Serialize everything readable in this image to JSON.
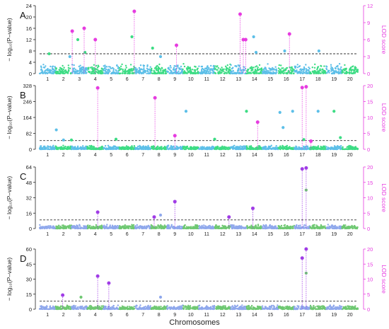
{
  "figure": {
    "xlabel": "Chromosomes",
    "chromosomes": [
      "1",
      "2",
      "3",
      "4",
      "5",
      "6",
      "7",
      "8",
      "9",
      "10",
      "11",
      "12",
      "13",
      "14",
      "15",
      "16",
      "17",
      "18",
      "19",
      "20"
    ],
    "left_axis_label": "− log₁₀(P–value)",
    "right_axis_label": "LOD score",
    "colors": {
      "chrom_odd": "#5dbfe8",
      "chrom_even": "#3ddc84",
      "c_odd": "#8fa8ec",
      "c_even": "#6fc872",
      "highlight": "#e63ce0",
      "right_axis": "#e63ce0",
      "threshold": "#333333",
      "stem": "#e63ce0"
    }
  },
  "chart_data": [
    {
      "panel": "A",
      "type": "scatter",
      "left_ticks": [
        0,
        4,
        8,
        12,
        16,
        20,
        24
      ],
      "right_ticks": [
        0,
        3,
        6,
        9,
        12
      ],
      "ylim": [
        0,
        24
      ],
      "right_ylim": [
        0,
        12
      ],
      "threshold": 7,
      "background_height": 2.5,
      "highlighted_peaks": [
        {
          "chrom": 2.55,
          "value": 15,
          "color": "#e63ce0"
        },
        {
          "chrom": 3.3,
          "value": 16,
          "color": "#e63ce0"
        },
        {
          "chrom": 4.0,
          "value": 12,
          "color": "#e63ce0"
        },
        {
          "chrom": 6.45,
          "value": 22,
          "color": "#e63ce0"
        },
        {
          "chrom": 9.1,
          "value": 10,
          "color": "#e63ce0"
        },
        {
          "chrom": 13.1,
          "value": 21,
          "color": "#e63ce0"
        },
        {
          "chrom": 13.3,
          "value": 12,
          "color": "#e63ce0"
        },
        {
          "chrom": 13.45,
          "value": 12,
          "color": "#e63ce0"
        },
        {
          "chrom": 16.2,
          "value": 14,
          "color": "#e63ce0"
        }
      ],
      "other_points": [
        {
          "chrom": 1.1,
          "value": 7,
          "color": "#3ddc84"
        },
        {
          "chrom": 2.4,
          "value": 6,
          "color": "#5dbfe8"
        },
        {
          "chrom": 2.9,
          "value": 12,
          "color": "#3ddc84"
        },
        {
          "chrom": 3.35,
          "value": 7.5,
          "color": "#3ddc84"
        },
        {
          "chrom": 6.3,
          "value": 13,
          "color": "#3ddc84"
        },
        {
          "chrom": 7.6,
          "value": 9,
          "color": "#3ddc84"
        },
        {
          "chrom": 8.1,
          "value": 6,
          "color": "#5dbfe8"
        },
        {
          "chrom": 13.95,
          "value": 13,
          "color": "#5dbfe8"
        },
        {
          "chrom": 14.1,
          "value": 7.5,
          "color": "#5dbfe8"
        },
        {
          "chrom": 15.9,
          "value": 8,
          "color": "#5dbfe8"
        },
        {
          "chrom": 18.05,
          "value": 8,
          "color": "#5dbfe8"
        }
      ]
    },
    {
      "panel": "B",
      "type": "scatter",
      "left_ticks": [
        0,
        82,
        164,
        246,
        328
      ],
      "right_ticks": [
        0,
        5,
        10,
        15,
        20
      ],
      "ylim": [
        0,
        328
      ],
      "right_ylim": [
        0,
        20
      ],
      "threshold": 45,
      "background_height": 15,
      "highlighted_peaks": [
        {
          "chrom": 4.15,
          "value": 316,
          "color": "#e63ce0"
        },
        {
          "chrom": 7.75,
          "value": 265,
          "color": "#e63ce0"
        },
        {
          "chrom": 9.0,
          "value": 70,
          "color": "#e63ce0"
        },
        {
          "chrom": 14.2,
          "value": 140,
          "color": "#e63ce0"
        },
        {
          "chrom": 17.0,
          "value": 318,
          "color": "#e63ce0"
        },
        {
          "chrom": 17.25,
          "value": 322,
          "color": "#e63ce0"
        },
        {
          "chrom": 17.55,
          "value": 42,
          "color": "#e63ce0"
        }
      ],
      "other_points": [
        {
          "chrom": 1.55,
          "value": 100,
          "color": "#5dbfe8"
        },
        {
          "chrom": 2.0,
          "value": 48,
          "color": "#5dbfe8"
        },
        {
          "chrom": 2.5,
          "value": 48,
          "color": "#3ddc84"
        },
        {
          "chrom": 5.3,
          "value": 52,
          "color": "#3ddc84"
        },
        {
          "chrom": 9.7,
          "value": 196,
          "color": "#5dbfe8"
        },
        {
          "chrom": 11.5,
          "value": 52,
          "color": "#3ddc84"
        },
        {
          "chrom": 13.5,
          "value": 196,
          "color": "#3ddc84"
        },
        {
          "chrom": 15.6,
          "value": 190,
          "color": "#5dbfe8"
        },
        {
          "chrom": 15.8,
          "value": 112,
          "color": "#5dbfe8"
        },
        {
          "chrom": 16.4,
          "value": 196,
          "color": "#5dbfe8"
        },
        {
          "chrom": 17.1,
          "value": 50,
          "color": "#3ddc84"
        },
        {
          "chrom": 18.0,
          "value": 196,
          "color": "#5dbfe8"
        },
        {
          "chrom": 19.0,
          "value": 196,
          "color": "#3ddc84"
        },
        {
          "chrom": 19.4,
          "value": 60,
          "color": "#3ddc84"
        }
      ]
    },
    {
      "panel": "C",
      "type": "scatter",
      "left_ticks": [
        0,
        16,
        32,
        48,
        64
      ],
      "right_ticks": [
        0,
        5,
        10,
        15,
        20
      ],
      "ylim": [
        0,
        64
      ],
      "right_ylim": [
        0,
        20
      ],
      "threshold": 9,
      "background_height": 3,
      "highlighted_peaks": [
        {
          "chrom": 4.15,
          "value": 17,
          "color": "#a03ce6"
        },
        {
          "chrom": 7.7,
          "value": 12,
          "color": "#a03ce6"
        },
        {
          "chrom": 9.0,
          "value": 28,
          "color": "#a03ce6"
        },
        {
          "chrom": 12.4,
          "value": 12,
          "color": "#a03ce6"
        },
        {
          "chrom": 13.9,
          "value": 21,
          "color": "#a03ce6"
        },
        {
          "chrom": 17.0,
          "value": 62,
          "color": "#a03ce6"
        },
        {
          "chrom": 17.25,
          "value": 63,
          "color": "#a03ce6"
        }
      ],
      "other_points": [
        {
          "chrom": 8.1,
          "value": 14,
          "color": "#8fa8ec"
        },
        {
          "chrom": 17.25,
          "value": 40,
          "color": "#6fc872"
        }
      ]
    },
    {
      "panel": "D",
      "type": "scatter",
      "left_ticks": [
        0,
        15,
        30,
        45,
        60
      ],
      "right_ticks": [
        0,
        5,
        10,
        15,
        20
      ],
      "ylim": [
        0,
        60
      ],
      "right_ylim": [
        0,
        20
      ],
      "threshold": 8,
      "background_height": 3,
      "highlighted_peaks": [
        {
          "chrom": 1.95,
          "value": 14,
          "color": "#a03ce6"
        },
        {
          "chrom": 4.15,
          "value": 33,
          "color": "#a03ce6"
        },
        {
          "chrom": 4.85,
          "value": 26,
          "color": "#a03ce6"
        },
        {
          "chrom": 17.0,
          "value": 51,
          "color": "#a03ce6"
        },
        {
          "chrom": 17.25,
          "value": 60,
          "color": "#a03ce6"
        }
      ],
      "other_points": [
        {
          "chrom": 3.1,
          "value": 12,
          "color": "#6fc872"
        },
        {
          "chrom": 8.1,
          "value": 12,
          "color": "#8fa8ec"
        },
        {
          "chrom": 17.25,
          "value": 36,
          "color": "#6fc872"
        }
      ]
    }
  ]
}
